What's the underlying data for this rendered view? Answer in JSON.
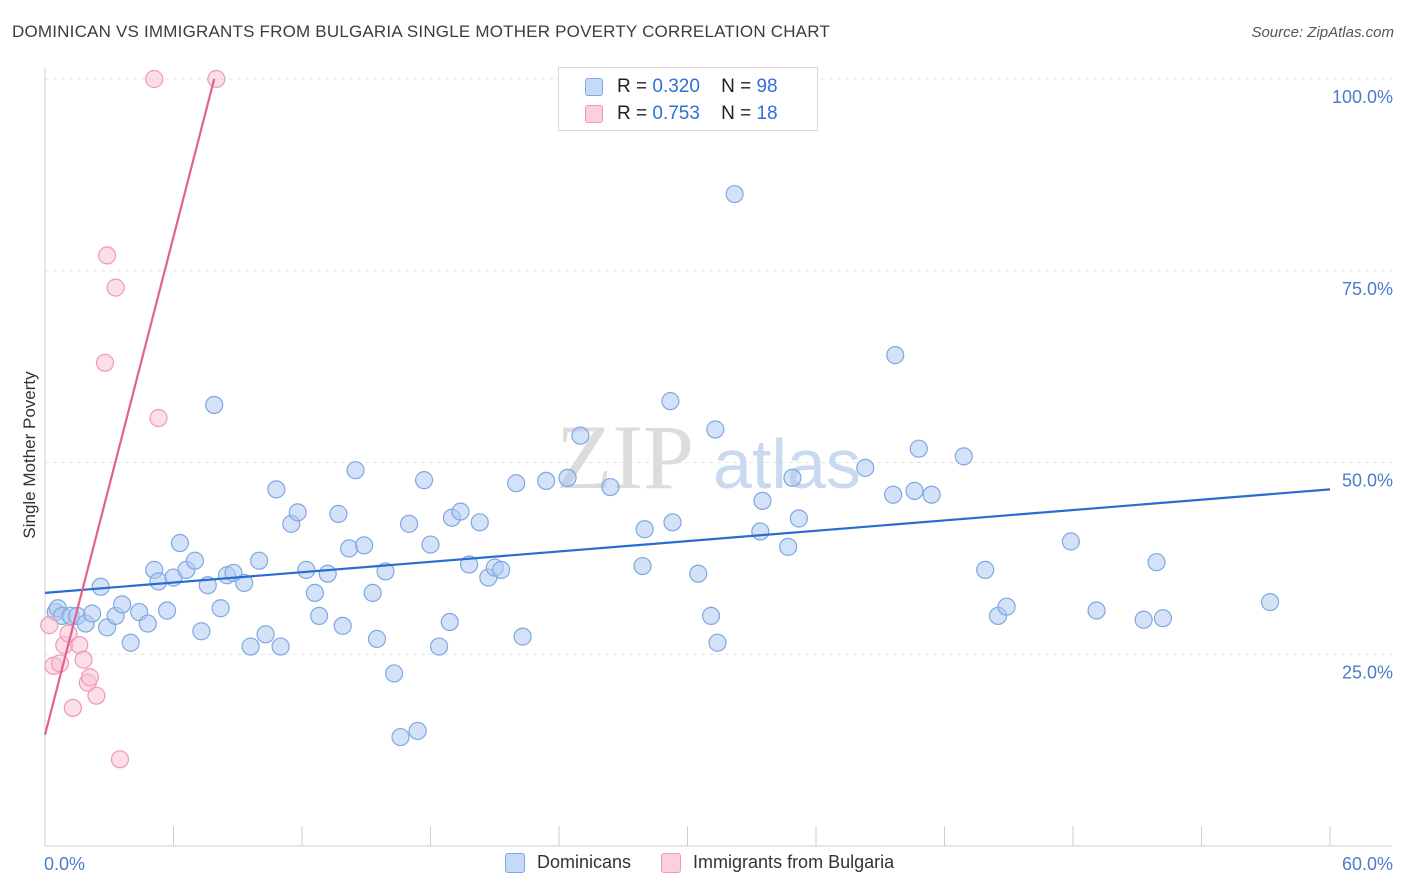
{
  "title": "DOMINICAN VS IMMIGRANTS FROM BULGARIA SINGLE MOTHER POVERTY CORRELATION CHART",
  "source": "Source: ZipAtlas.com",
  "watermark": {
    "zip": "ZIP",
    "atlas": "atlas"
  },
  "legend": {
    "r_label": "R =",
    "n_label": "N =",
    "rows": [
      {
        "r": "0.320",
        "n": "98"
      },
      {
        "r": "0.753",
        "n": "18"
      }
    ]
  },
  "bottom_legend": [
    "Dominicans",
    "Immigrants from Bulgaria"
  ],
  "colors": {
    "blue_fill": "#aecbf2",
    "blue_stroke": "#7fa8e0",
    "blue_line": "#2a6dd0",
    "pink_fill": "#f8c3d3",
    "pink_stroke": "#ee9ab4",
    "pink_line": "#e2628f",
    "tick_text": "#4a7cc9",
    "grid": "#e3e3e3"
  },
  "chart_data": {
    "type": "scatter",
    "title": "DOMINICAN VS IMMIGRANTS FROM BULGARIA SINGLE MOTHER POVERTY CORRELATION CHART",
    "xlabel": "",
    "ylabel": "Single Mother Poverty",
    "xlim": [
      0,
      60
    ],
    "ylim": [
      0,
      102
    ],
    "x_tick_labels": [
      {
        "value": 0,
        "label": "0.0%"
      },
      {
        "value": 60,
        "label": "60.0%"
      }
    ],
    "y_tick_labels": [
      {
        "value": 25,
        "label": "25.0%"
      },
      {
        "value": 50,
        "label": "50.0%"
      },
      {
        "value": 75,
        "label": "75.0%"
      },
      {
        "value": 100,
        "label": "100.0%"
      }
    ],
    "series": [
      {
        "name": "Dominicans",
        "R": 0.32,
        "N": 98,
        "trend": {
          "x": [
            0,
            60
          ],
          "y": [
            33.0,
            46.5
          ]
        },
        "points": [
          [
            0.5,
            30.5
          ],
          [
            0.6,
            31.0
          ],
          [
            0.8,
            30.0
          ],
          [
            1.2,
            30.0
          ],
          [
            1.5,
            30.0
          ],
          [
            1.9,
            29.0
          ],
          [
            2.2,
            30.3
          ],
          [
            2.6,
            33.8
          ],
          [
            2.9,
            28.5
          ],
          [
            3.3,
            30.0
          ],
          [
            3.6,
            31.5
          ],
          [
            4.0,
            26.5
          ],
          [
            4.4,
            30.5
          ],
          [
            4.8,
            29.0
          ],
          [
            5.1,
            36.0
          ],
          [
            5.3,
            34.5
          ],
          [
            5.7,
            30.7
          ],
          [
            6.0,
            35.0
          ],
          [
            6.3,
            39.5
          ],
          [
            6.6,
            36.0
          ],
          [
            7.0,
            37.2
          ],
          [
            7.3,
            28.0
          ],
          [
            7.6,
            34.0
          ],
          [
            7.9,
            57.5
          ],
          [
            8.2,
            31.0
          ],
          [
            8.5,
            35.3
          ],
          [
            8.8,
            35.6
          ],
          [
            9.3,
            34.3
          ],
          [
            9.6,
            26.0
          ],
          [
            10.0,
            37.2
          ],
          [
            10.3,
            27.6
          ],
          [
            10.8,
            46.5
          ],
          [
            11.0,
            26.0
          ],
          [
            11.5,
            42.0
          ],
          [
            11.8,
            43.5
          ],
          [
            12.2,
            36.0
          ],
          [
            12.6,
            33.0
          ],
          [
            12.8,
            30.0
          ],
          [
            13.2,
            35.5
          ],
          [
            13.7,
            43.3
          ],
          [
            13.9,
            28.7
          ],
          [
            14.2,
            38.8
          ],
          [
            14.5,
            49.0
          ],
          [
            14.9,
            39.2
          ],
          [
            15.3,
            33.0
          ],
          [
            15.5,
            27.0
          ],
          [
            15.9,
            35.8
          ],
          [
            16.3,
            22.5
          ],
          [
            16.6,
            14.2
          ],
          [
            17.0,
            42.0
          ],
          [
            17.4,
            15.0
          ],
          [
            17.7,
            47.7
          ],
          [
            18.0,
            39.3
          ],
          [
            18.4,
            26.0
          ],
          [
            18.9,
            29.2
          ],
          [
            19.0,
            42.8
          ],
          [
            19.4,
            43.6
          ],
          [
            19.8,
            36.7
          ],
          [
            20.3,
            42.2
          ],
          [
            20.7,
            35.0
          ],
          [
            21.0,
            36.3
          ],
          [
            21.3,
            36.0
          ],
          [
            22.0,
            47.3
          ],
          [
            22.3,
            27.3
          ],
          [
            23.4,
            47.6
          ],
          [
            24.4,
            48.0
          ],
          [
            25.0,
            53.5
          ],
          [
            26.4,
            46.8
          ],
          [
            27.9,
            36.5
          ],
          [
            28.0,
            41.3
          ],
          [
            29.2,
            58.0
          ],
          [
            29.3,
            42.2
          ],
          [
            30.5,
            35.5
          ],
          [
            31.1,
            30.0
          ],
          [
            31.3,
            54.3
          ],
          [
            31.4,
            26.5
          ],
          [
            32.2,
            85.0
          ],
          [
            33.4,
            41.0
          ],
          [
            33.5,
            45.0
          ],
          [
            34.7,
            39.0
          ],
          [
            34.9,
            48.0
          ],
          [
            35.2,
            42.7
          ],
          [
            38.3,
            49.3
          ],
          [
            39.6,
            45.8
          ],
          [
            39.7,
            64.0
          ],
          [
            40.6,
            46.3
          ],
          [
            40.8,
            51.8
          ],
          [
            41.4,
            45.8
          ],
          [
            42.9,
            50.8
          ],
          [
            43.9,
            36.0
          ],
          [
            44.5,
            30.0
          ],
          [
            44.9,
            31.2
          ],
          [
            47.9,
            39.7
          ],
          [
            49.1,
            30.7
          ],
          [
            51.3,
            29.5
          ],
          [
            51.9,
            37.0
          ],
          [
            52.2,
            29.7
          ],
          [
            57.2,
            31.8
          ]
        ]
      },
      {
        "name": "Immigrants from Bulgaria",
        "R": 0.753,
        "N": 18,
        "trend": {
          "x": [
            0,
            7.9
          ],
          "y": [
            14.5,
            100.0
          ]
        },
        "points": [
          [
            0.2,
            28.8
          ],
          [
            0.4,
            23.5
          ],
          [
            0.7,
            23.8
          ],
          [
            0.9,
            26.2
          ],
          [
            1.1,
            27.7
          ],
          [
            1.3,
            18.0
          ],
          [
            1.6,
            26.2
          ],
          [
            1.8,
            24.3
          ],
          [
            2.0,
            21.3
          ],
          [
            2.1,
            22.0
          ],
          [
            2.4,
            19.6
          ],
          [
            2.8,
            63.0
          ],
          [
            2.9,
            77.0
          ],
          [
            3.3,
            72.8
          ],
          [
            3.5,
            11.3
          ],
          [
            5.1,
            100.0
          ],
          [
            5.3,
            55.8
          ],
          [
            8.0,
            100.0
          ]
        ]
      }
    ]
  }
}
